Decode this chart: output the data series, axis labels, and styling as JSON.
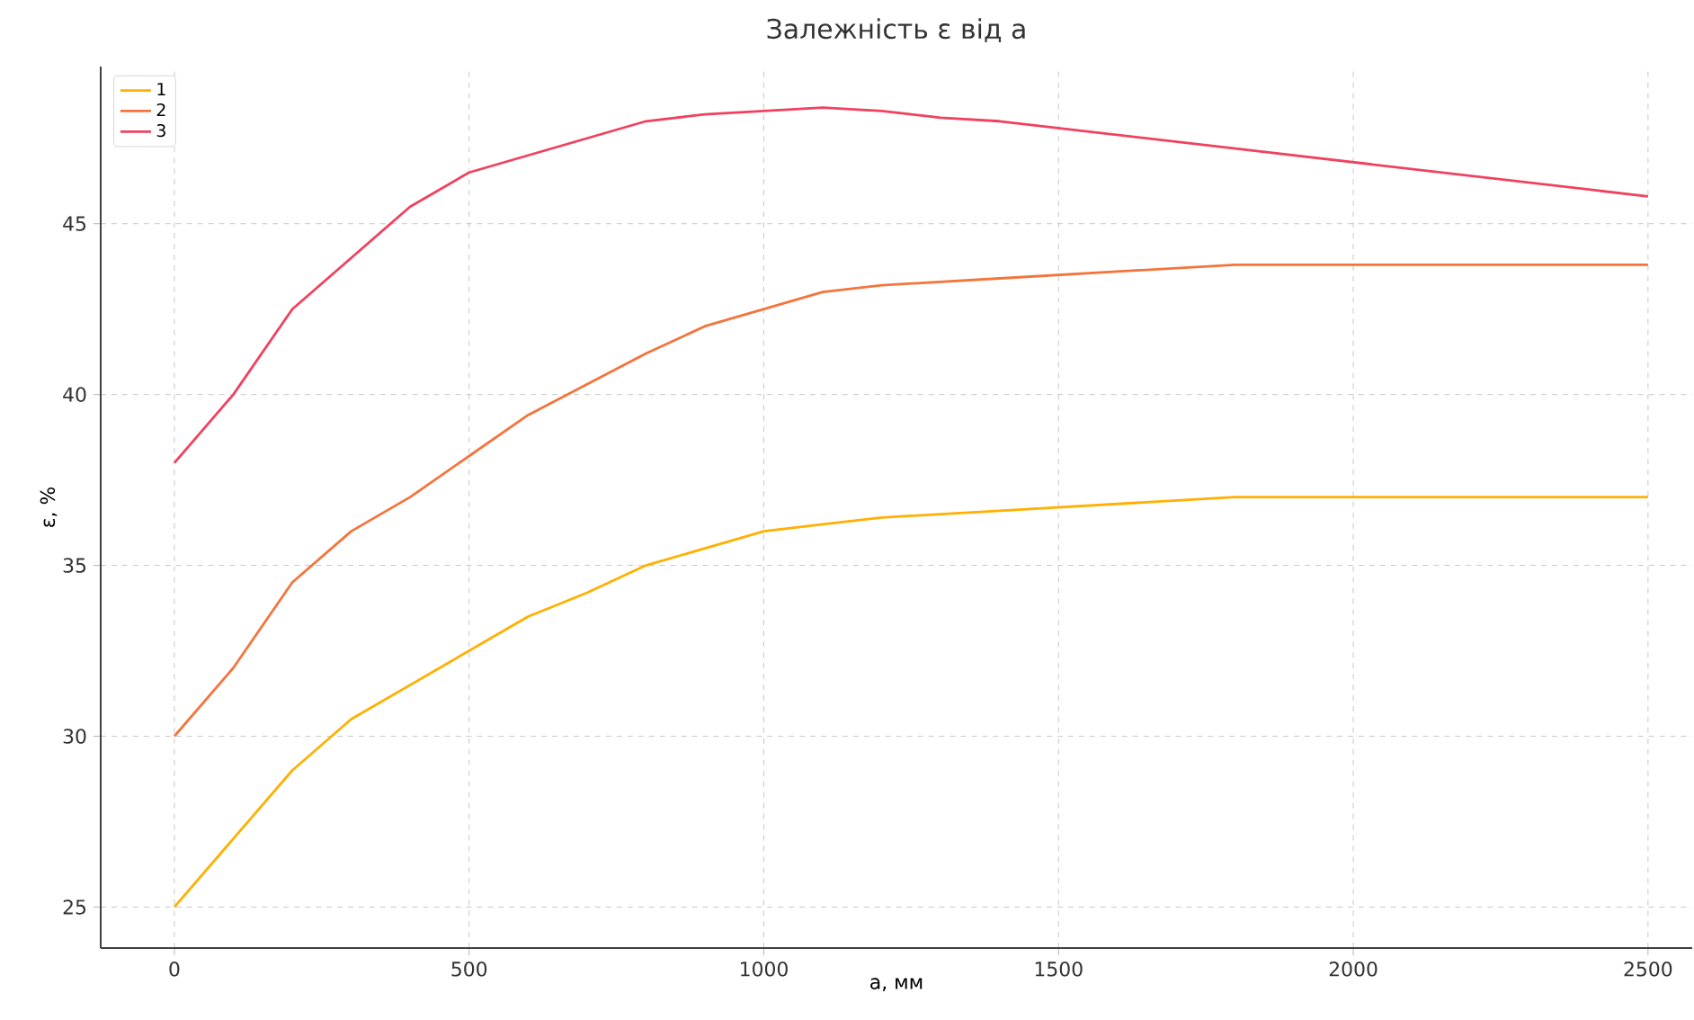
{
  "chart_data": {
    "type": "line",
    "title": "Залежність ε від a",
    "xlabel": "a, мм",
    "ylabel": "ε, %",
    "x": [
      0,
      100,
      200,
      300,
      400,
      500,
      600,
      700,
      800,
      900,
      1000,
      1100,
      1200,
      1300,
      1400,
      1800,
      2500
    ],
    "series": [
      {
        "name": "1",
        "color": "#ffb000",
        "values": [
          25,
          27,
          29,
          30.5,
          31.5,
          32.5,
          33.5,
          34.2,
          35,
          35.5,
          36,
          36.2,
          36.4,
          36.5,
          36.6,
          37,
          37
        ]
      },
      {
        "name": "2",
        "color": "#f4743b",
        "values": [
          30,
          32,
          34.5,
          36,
          37,
          38.2,
          39.4,
          40.3,
          41.2,
          42,
          42.5,
          43,
          43.2,
          43.3,
          43.4,
          43.8,
          43.8
        ]
      },
      {
        "name": "3",
        "color": "#f0415f",
        "values": [
          38,
          40,
          42.5,
          44,
          45.5,
          46.5,
          47,
          47.5,
          48,
          48.2,
          48.3,
          48.4,
          48.3,
          48.1,
          48,
          47.2,
          45.8
        ]
      }
    ],
    "xlim": [
      -125,
      2575
    ],
    "ylim": [
      23.8,
      49.6
    ],
    "xticks": [
      0,
      500,
      1000,
      1500,
      2000,
      2500
    ],
    "yticks": [
      25,
      30,
      35,
      40,
      45
    ],
    "grid": true,
    "legend": "top left",
    "marker": "none",
    "line_style": "solid"
  }
}
